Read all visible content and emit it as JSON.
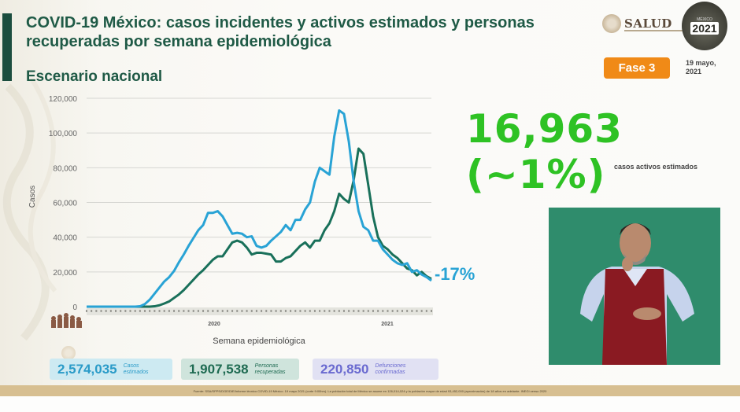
{
  "header": {
    "title": "COVID-19 México: casos incidentes y activos estimados y personas recuperadas por semana epidemiológica",
    "subtitle": "Escenario nacional",
    "brand": "SALUD",
    "event_logo_year": "2021",
    "phase_badge": "Fase 3",
    "date": "19 mayo, 2021"
  },
  "highlight": {
    "value": "16,963 (~1%)",
    "caption": "casos activos estimados"
  },
  "change_label": "-17%",
  "stats": [
    {
      "value": "2,574,035",
      "label_line1": "Casos",
      "label_line2": "estimados",
      "color": "#2a9bc8"
    },
    {
      "value": "1,907,538",
      "label_line1": "Personas",
      "label_line2": "recuperadas",
      "color": "#1f6b52"
    },
    {
      "value": "220,850",
      "label_line1": "Defunciones",
      "label_line2": "confirmadas",
      "color": "#6a6ad0"
    }
  ],
  "footer_text": "Fuente: SSA/SPPS/DGE/DIE/Informe técnico COVID-19 México. 19 mayo 2021 (corte 9:00hrs). La población total de México se asume en 126,014,024 y la población mayor de edad 93,452,000 (aproximación) de 18 años en adelante. INEGI censo 2020",
  "chart_data": {
    "type": "line",
    "title": "COVID-19 México: casos incidentes y activos estimados y personas recuperadas por semana epidemiológica",
    "xlabel": "Semana epidemiológica",
    "ylabel": "Casos",
    "ylim": [
      0,
      120000
    ],
    "yticks": [
      "0",
      "20,000",
      "40,000",
      "60,000",
      "80,000",
      "100,000",
      "120,000"
    ],
    "ytick_values": [
      0,
      20000,
      40000,
      60000,
      80000,
      100000,
      120000
    ],
    "year_labels": [
      "2020",
      "2021"
    ],
    "grid": true,
    "legend": "none",
    "x": [
      1,
      2,
      3,
      4,
      5,
      6,
      7,
      8,
      9,
      10,
      11,
      12,
      13,
      14,
      15,
      16,
      17,
      18,
      19,
      20,
      21,
      22,
      23,
      24,
      25,
      26,
      27,
      28,
      29,
      30,
      31,
      32,
      33,
      34,
      35,
      36,
      37,
      38,
      39,
      40,
      41,
      42,
      43,
      44,
      45,
      46,
      47,
      48,
      49,
      50,
      51,
      52,
      53,
      54,
      55,
      56,
      57,
      58,
      59,
      60,
      61,
      62,
      63,
      64,
      65,
      66,
      67,
      68,
      69,
      70,
      71,
      72
    ],
    "series": [
      {
        "name": "Casos incidentes estimados",
        "color": "#29a3d5",
        "values": [
          0,
          0,
          0,
          0,
          0,
          0,
          0,
          0,
          0,
          0,
          0,
          200,
          1500,
          4000,
          7500,
          11000,
          14500,
          17000,
          20500,
          25500,
          30000,
          35000,
          39500,
          44000,
          47000,
          54000,
          54000,
          55000,
          52000,
          47000,
          42000,
          42500,
          42000,
          40000,
          40500,
          35000,
          34000,
          35000,
          38000,
          40500,
          43000,
          47000,
          44000,
          50000,
          50000,
          56000,
          60000,
          72000,
          80000,
          78000,
          76000,
          98000,
          113000,
          111000,
          95000,
          72000,
          55000,
          46000,
          44000,
          38000,
          38000,
          33000,
          30000,
          27000,
          25000,
          24000,
          25000,
          20000,
          21000,
          18500,
          17000,
          15000
        ]
      },
      {
        "name": "Casos activos estimados",
        "color": "#19705a",
        "values": [
          0,
          0,
          0,
          0,
          0,
          0,
          0,
          0,
          0,
          0,
          0,
          0,
          0,
          0,
          200,
          800,
          1800,
          3000,
          5000,
          7000,
          9500,
          12500,
          15500,
          18500,
          21000,
          24000,
          27000,
          29000,
          29000,
          33000,
          37000,
          38000,
          37000,
          34000,
          30000,
          31000,
          31000,
          30500,
          30000,
          26000,
          26000,
          28000,
          29000,
          32000,
          35000,
          37000,
          34000,
          38000,
          38000,
          44000,
          48000,
          55000,
          65000,
          62000,
          60000,
          73000,
          91000,
          88000,
          70000,
          52000,
          40000,
          35000,
          33000,
          30000,
          28000,
          25000,
          22000,
          21000,
          18000,
          20000,
          17500,
          16000
        ]
      }
    ]
  }
}
